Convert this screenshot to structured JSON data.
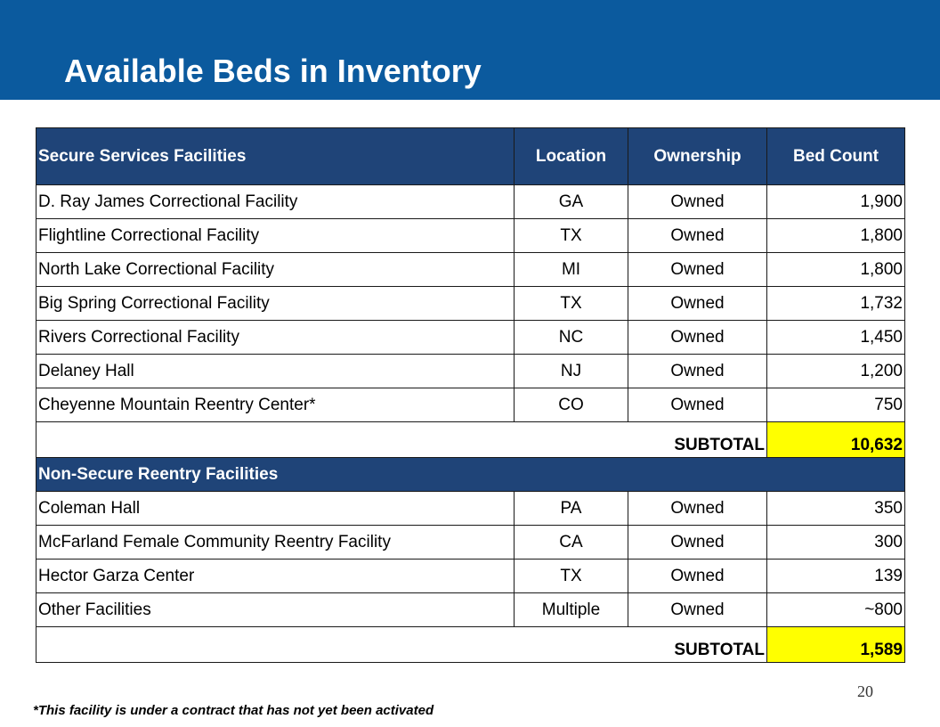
{
  "slide": {
    "title": "Available Beds in Inventory",
    "page_number": "20",
    "footnote": "*This facility is under a contract that has not yet been activated"
  },
  "colors": {
    "header_bar": "#0b5a9e",
    "table_header": "#1f4478",
    "subtotal_highlight": "#ffff00"
  },
  "table": {
    "headers": [
      "Secure Services Facilities",
      "Location",
      "Ownership",
      "Bed Count"
    ],
    "secure_rows": [
      {
        "facility": "D. Ray James Correctional Facility",
        "location": "GA",
        "ownership": "Owned",
        "beds": "1,900"
      },
      {
        "facility": "Flightline Correctional Facility",
        "location": "TX",
        "ownership": "Owned",
        "beds": "1,800"
      },
      {
        "facility": "North Lake Correctional Facility",
        "location": "MI",
        "ownership": "Owned",
        "beds": "1,800"
      },
      {
        "facility": "Big Spring Correctional Facility",
        "location": "TX",
        "ownership": "Owned",
        "beds": "1,732"
      },
      {
        "facility": "Rivers Correctional Facility",
        "location": "NC",
        "ownership": "Owned",
        "beds": "1,450"
      },
      {
        "facility": "Delaney Hall",
        "location": "NJ",
        "ownership": "Owned",
        "beds": "1,200"
      },
      {
        "facility": "Cheyenne Mountain Reentry Center*",
        "location": "CO",
        "ownership": "Owned",
        "beds": "750"
      }
    ],
    "secure_subtotal": {
      "label": "SUBTOTAL",
      "value": "10,632"
    },
    "nonsecure_section_label": "Non-Secure Reentry Facilities",
    "nonsecure_rows": [
      {
        "facility": "Coleman Hall",
        "location": "PA",
        "ownership": "Owned",
        "beds": "350"
      },
      {
        "facility": "McFarland Female Community Reentry Facility",
        "location": "CA",
        "ownership": "Owned",
        "beds": "300"
      },
      {
        "facility": "Hector Garza Center",
        "location": "TX",
        "ownership": "Owned",
        "beds": "139"
      },
      {
        "facility": "Other Facilities",
        "location": "Multiple",
        "ownership": "Owned",
        "beds": "~800"
      }
    ],
    "nonsecure_subtotal": {
      "label": "SUBTOTAL",
      "value": "1,589"
    }
  }
}
